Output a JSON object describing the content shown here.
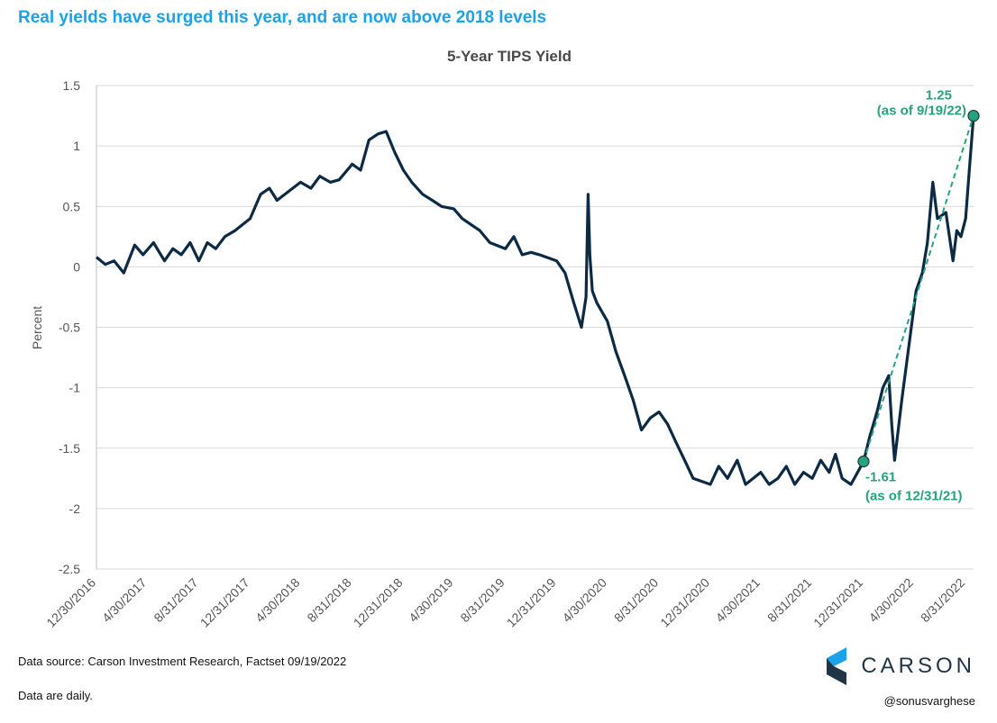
{
  "headline": "Real yields have surged this year, and are now above 2018 levels",
  "footer": {
    "source": "Data source: Carson Investment Research, Factset   09/19/2022",
    "note": "Data are daily.",
    "handle": "@sonusvarghese",
    "logo_text": "CARSON"
  },
  "colors": {
    "line": "#0d2a45",
    "accent": "#26a37e",
    "headline": "#1aa3e8",
    "grid": "#d9d9d9"
  },
  "chart_data": {
    "type": "line",
    "title": "5-Year TIPS Yield",
    "ylabel": "Percent",
    "xlabel": "",
    "ylim": [
      -2.5,
      1.5
    ],
    "yticks": [
      "1.5",
      "1",
      "0.5",
      "0",
      "-0.5",
      "-1",
      "-1.5",
      "-2",
      "-2.5"
    ],
    "x_range": [
      "2016-12-30",
      "2022-09-19"
    ],
    "xtick_dates": [
      "2016-12-30",
      "2017-04-30",
      "2017-08-31",
      "2017-12-31",
      "2018-04-30",
      "2018-08-31",
      "2018-12-31",
      "2019-04-30",
      "2019-08-31",
      "2019-12-31",
      "2020-04-30",
      "2020-08-31",
      "2020-12-31",
      "2021-04-30",
      "2021-08-31",
      "2021-12-31",
      "2022-04-30",
      "2022-08-31"
    ],
    "xticks": [
      "12/30/2016",
      "4/30/2017",
      "8/31/2017",
      "12/31/2017",
      "4/30/2018",
      "8/31/2018",
      "12/31/2018",
      "4/30/2019",
      "8/31/2019",
      "12/31/2019",
      "4/30/2020",
      "8/31/2020",
      "12/31/2020",
      "4/30/2021",
      "8/31/2021",
      "12/31/2021",
      "4/30/2022",
      "8/31/2022"
    ],
    "grid": "horizontal",
    "series": [
      {
        "x": [
          "2016-12-30",
          "2017-01-20",
          "2017-02-10",
          "2017-03-05",
          "2017-03-31",
          "2017-04-20",
          "2017-05-15",
          "2017-06-10",
          "2017-06-30",
          "2017-07-20",
          "2017-08-10",
          "2017-08-31",
          "2017-09-20",
          "2017-10-10",
          "2017-11-01",
          "2017-11-25",
          "2017-12-31",
          "2018-01-25",
          "2018-02-15",
          "2018-03-05",
          "2018-04-30",
          "2018-05-25",
          "2018-06-15",
          "2018-07-10",
          "2018-07-31",
          "2018-08-31",
          "2018-09-20",
          "2018-10-10",
          "2018-11-01",
          "2018-11-20",
          "2018-12-10",
          "2018-12-31",
          "2019-01-20",
          "2019-02-15",
          "2019-03-10",
          "2019-04-01",
          "2019-04-30",
          "2019-05-20",
          "2019-06-10",
          "2019-07-01",
          "2019-07-25",
          "2019-08-31",
          "2019-09-20",
          "2019-10-10",
          "2019-10-31",
          "2019-11-20",
          "2019-12-31",
          "2020-01-20",
          "2020-02-10",
          "2020-02-28",
          "2020-03-10",
          "2020-03-15",
          "2020-03-19",
          "2020-03-25",
          "2020-04-05",
          "2020-04-30",
          "2020-05-20",
          "2020-06-10",
          "2020-06-30",
          "2020-07-20",
          "2020-08-10",
          "2020-08-31",
          "2020-09-20",
          "2020-10-10",
          "2020-10-31",
          "2020-11-20",
          "2020-12-31",
          "2021-01-20",
          "2021-02-10",
          "2021-03-05",
          "2021-03-25",
          "2021-04-30",
          "2021-05-20",
          "2021-06-10",
          "2021-06-30",
          "2021-07-20",
          "2021-08-10",
          "2021-08-31",
          "2021-09-20",
          "2021-10-10",
          "2021-10-25",
          "2021-11-10",
          "2021-12-01",
          "2021-12-31",
          "2022-01-15",
          "2022-02-01",
          "2022-02-15",
          "2022-03-01",
          "2022-03-08",
          "2022-03-15",
          "2022-04-01",
          "2022-04-20",
          "2022-05-05",
          "2022-05-20",
          "2022-06-01",
          "2022-06-14",
          "2022-06-25",
          "2022-07-15",
          "2022-08-01",
          "2022-08-10",
          "2022-08-20",
          "2022-08-31",
          "2022-09-10",
          "2022-09-19"
        ],
        "y": [
          0.08,
          0.02,
          0.05,
          -0.05,
          0.18,
          0.1,
          0.2,
          0.05,
          0.15,
          0.1,
          0.2,
          0.05,
          0.2,
          0.15,
          0.25,
          0.3,
          0.4,
          0.6,
          0.65,
          0.55,
          0.7,
          0.65,
          0.75,
          0.7,
          0.72,
          0.85,
          0.8,
          1.05,
          1.1,
          1.12,
          0.95,
          0.8,
          0.7,
          0.6,
          0.55,
          0.5,
          0.48,
          0.4,
          0.35,
          0.3,
          0.2,
          0.15,
          0.25,
          0.1,
          0.12,
          0.1,
          0.05,
          -0.05,
          -0.3,
          -0.5,
          -0.25,
          0.6,
          0.1,
          -0.2,
          -0.3,
          -0.45,
          -0.7,
          -0.9,
          -1.1,
          -1.35,
          -1.25,
          -1.2,
          -1.3,
          -1.45,
          -1.6,
          -1.75,
          -1.8,
          -1.65,
          -1.75,
          -1.6,
          -1.8,
          -1.7,
          -1.8,
          -1.75,
          -1.65,
          -1.8,
          -1.7,
          -1.75,
          -1.6,
          -1.7,
          -1.55,
          -1.75,
          -1.8,
          -1.61,
          -1.4,
          -1.2,
          -1.0,
          -0.9,
          -1.3,
          -1.6,
          -1.1,
          -0.6,
          -0.2,
          -0.05,
          0.2,
          0.7,
          0.4,
          0.45,
          0.05,
          0.3,
          0.25,
          0.4,
          0.85,
          1.25
        ]
      }
    ],
    "annotations": [
      {
        "date": "2021-12-31",
        "value": -1.61,
        "label": "-1.61",
        "sublabel": "(as of 12/31/21)"
      },
      {
        "date": "2022-09-19",
        "value": 1.25,
        "label": "1.25",
        "sublabel": "(as of 9/19/22)"
      }
    ],
    "trend_line": {
      "from": "2021-12-31",
      "to": "2022-09-19",
      "style": "dashed"
    }
  }
}
